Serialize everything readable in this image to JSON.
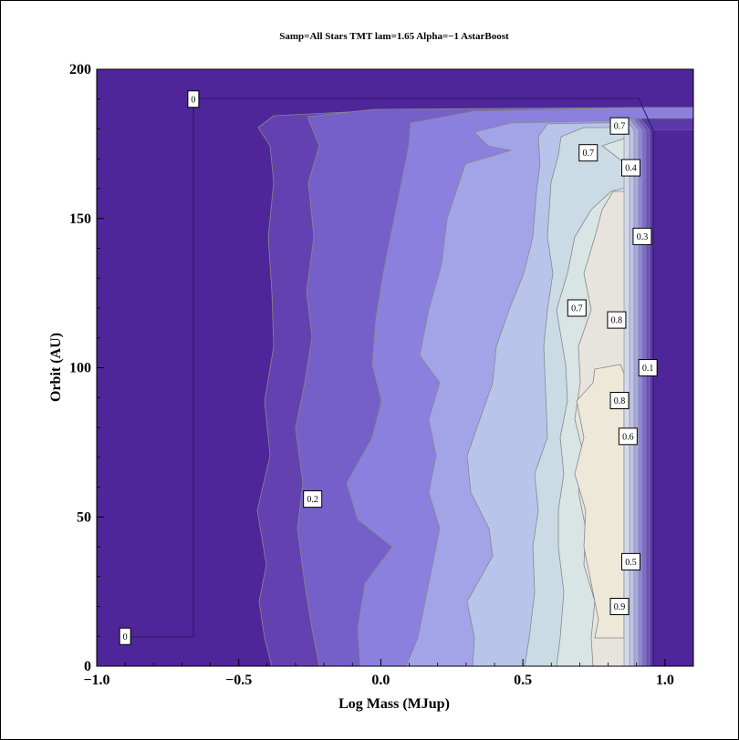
{
  "chart_data": {
    "type": "contour",
    "title": "Samp=All Stars TMT lam=1.65 Alpha=−1 AstarBoost",
    "xlabel": "Log Mass (MJup)",
    "ylabel": "Orbit (AU)",
    "xlim": [
      -1.0,
      1.1
    ],
    "ylim": [
      0,
      200
    ],
    "x_ticks": [
      -1.0,
      -0.5,
      0.0,
      0.5,
      1.0
    ],
    "x_tick_labels": [
      "−1.0",
      "−0.5",
      "0.0",
      "0.5",
      "1.0"
    ],
    "y_ticks": [
      0,
      50,
      100,
      150,
      200
    ],
    "y_tick_labels": [
      "0",
      "50",
      "100",
      "150",
      "200"
    ],
    "grid": false,
    "levels": [
      0,
      0.1,
      0.2,
      0.3,
      0.4,
      0.5,
      0.6,
      0.7,
      0.8,
      0.9
    ],
    "colors": {
      "band_0": "#4f2699",
      "band_01": "#6441b0",
      "band_02": "#7560c9",
      "band_03": "#8b80dd",
      "band_04": "#a3a4e8",
      "band_05": "#b9c4ea",
      "band_06": "#cadbe6",
      "band_07": "#d9e4e4",
      "band_08": "#e6e4dc",
      "band_09": "#ede8d8",
      "contour_line": "#888888"
    },
    "contour_labels": [
      {
        "text": "0",
        "x": -0.66,
        "y": 190
      },
      {
        "text": "0",
        "x": -0.9,
        "y": 10
      },
      {
        "text": "0.2",
        "x": -0.24,
        "y": 56
      },
      {
        "text": "0.7",
        "x": 0.84,
        "y": 181
      },
      {
        "text": "0.7",
        "x": 0.73,
        "y": 172
      },
      {
        "text": "0.4",
        "x": 0.88,
        "y": 167
      },
      {
        "text": "0.3",
        "x": 0.92,
        "y": 144
      },
      {
        "text": "0.7",
        "x": 0.69,
        "y": 120
      },
      {
        "text": "0.8",
        "x": 0.83,
        "y": 116
      },
      {
        "text": "0.1",
        "x": 0.94,
        "y": 100
      },
      {
        "text": "0.8",
        "x": 0.84,
        "y": 89
      },
      {
        "text": "0.6",
        "x": 0.87,
        "y": 77
      },
      {
        "text": "0.5",
        "x": 0.88,
        "y": 35
      },
      {
        "text": "0.9",
        "x": 0.84,
        "y": 20
      }
    ]
  }
}
